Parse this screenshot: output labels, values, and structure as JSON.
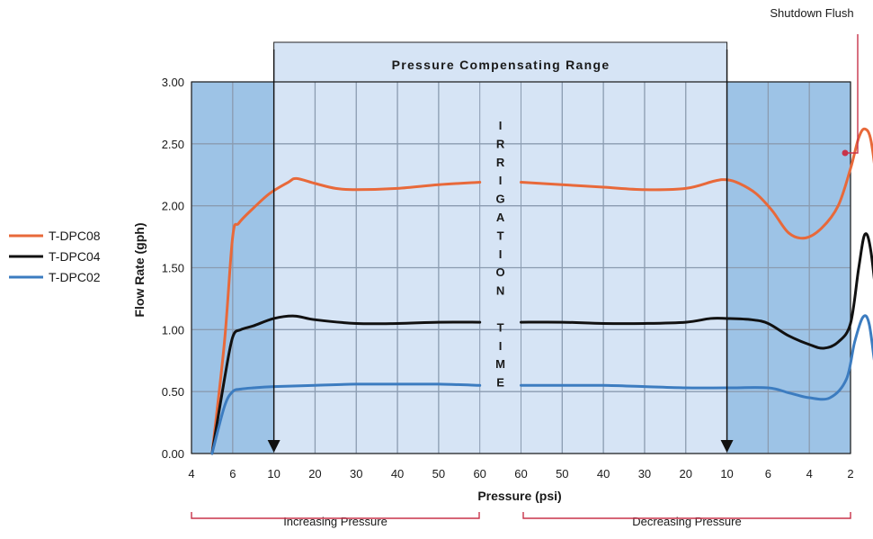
{
  "chart_data": {
    "type": "line",
    "title": "",
    "xlabel": "Pressure (psi)",
    "ylabel": "Flow Rate (gph)",
    "ylim": [
      0,
      3
    ],
    "yticks": [
      "0.00",
      "0.50",
      "1.00",
      "1.50",
      "2.00",
      "2.50",
      "3.00"
    ],
    "x_tick_labels": [
      "4",
      "6",
      "10",
      "20",
      "30",
      "40",
      "50",
      "60",
      "60",
      "50",
      "40",
      "30",
      "20",
      "10",
      "6",
      "4",
      "2"
    ],
    "grid": true,
    "legend_placement": "left",
    "band_label": "Pressure Compensating Range",
    "center_label_letters": [
      "I",
      "R",
      "R",
      "I",
      "G",
      "A",
      "T",
      "I",
      "O",
      "N",
      "",
      "T",
      "I",
      "M",
      "E"
    ],
    "phases": [
      "Increasing Pressure",
      "Decreasing Pressure"
    ],
    "annotation": "Shutdown Flush",
    "series": [
      {
        "name": "T-DPC08",
        "color": "#E8693A",
        "segments": [
          [
            [
              0.5,
              0.0
            ],
            [
              0.8,
              0.9
            ],
            [
              1.0,
              1.75
            ],
            [
              1.15,
              1.86
            ],
            [
              1.5,
              1.98
            ],
            [
              1.9,
              2.1
            ],
            [
              2.35,
              2.19
            ],
            [
              2.55,
              2.22
            ],
            [
              3,
              2.18
            ],
            [
              3.5,
              2.14
            ],
            [
              4,
              2.13
            ],
            [
              5,
              2.14
            ],
            [
              6,
              2.17
            ],
            [
              7,
              2.19
            ]
          ],
          [
            [
              8,
              2.19
            ],
            [
              9,
              2.17
            ],
            [
              10,
              2.15
            ],
            [
              11,
              2.13
            ],
            [
              12,
              2.14
            ],
            [
              12.7,
              2.2
            ],
            [
              13,
              2.21
            ],
            [
              13.3,
              2.18
            ],
            [
              13.7,
              2.1
            ],
            [
              14.1,
              1.96
            ],
            [
              14.5,
              1.78
            ],
            [
              14.9,
              1.74
            ],
            [
              15.3,
              1.82
            ],
            [
              15.7,
              2.0
            ],
            [
              16.0,
              2.3
            ],
            [
              16.2,
              2.55
            ],
            [
              16.35,
              2.62
            ],
            [
              16.5,
              2.52
            ],
            [
              16.65,
              2.1
            ],
            [
              16.85,
              1.2
            ],
            [
              17.0,
              0.0
            ]
          ]
        ]
      },
      {
        "name": "T-DPC04",
        "color": "#111111",
        "segments": [
          [
            [
              0.5,
              0.0
            ],
            [
              0.8,
              0.6
            ],
            [
              1.0,
              0.94
            ],
            [
              1.2,
              1.0
            ],
            [
              1.5,
              1.03
            ],
            [
              2,
              1.09
            ],
            [
              2.5,
              1.11
            ],
            [
              3,
              1.08
            ],
            [
              4,
              1.05
            ],
            [
              5,
              1.05
            ],
            [
              6,
              1.06
            ],
            [
              7,
              1.06
            ]
          ],
          [
            [
              8,
              1.06
            ],
            [
              9,
              1.06
            ],
            [
              10,
              1.05
            ],
            [
              11,
              1.05
            ],
            [
              12,
              1.06
            ],
            [
              12.6,
              1.09
            ],
            [
              13,
              1.09
            ],
            [
              13.6,
              1.08
            ],
            [
              14,
              1.05
            ],
            [
              14.5,
              0.95
            ],
            [
              15,
              0.88
            ],
            [
              15.35,
              0.85
            ],
            [
              15.7,
              0.9
            ],
            [
              16.0,
              1.05
            ],
            [
              16.2,
              1.5
            ],
            [
              16.35,
              1.77
            ],
            [
              16.5,
              1.62
            ],
            [
              16.7,
              1.0
            ],
            [
              16.85,
              0.4
            ],
            [
              17.0,
              0.0
            ]
          ]
        ]
      },
      {
        "name": "T-DPC02",
        "color": "#3C7CC0",
        "segments": [
          [
            [
              0.5,
              0.0
            ],
            [
              0.8,
              0.38
            ],
            [
              1.0,
              0.5
            ],
            [
              1.2,
              0.52
            ],
            [
              1.5,
              0.53
            ],
            [
              2,
              0.54
            ],
            [
              3,
              0.55
            ],
            [
              4,
              0.56
            ],
            [
              5,
              0.56
            ],
            [
              6,
              0.56
            ],
            [
              7,
              0.55
            ]
          ],
          [
            [
              8,
              0.55
            ],
            [
              9,
              0.55
            ],
            [
              10,
              0.55
            ],
            [
              11,
              0.54
            ],
            [
              12,
              0.53
            ],
            [
              13,
              0.53
            ],
            [
              14,
              0.53
            ],
            [
              14.5,
              0.49
            ],
            [
              15,
              0.45
            ],
            [
              15.5,
              0.45
            ],
            [
              15.9,
              0.6
            ],
            [
              16.1,
              0.9
            ],
            [
              16.3,
              1.1
            ],
            [
              16.45,
              1.05
            ],
            [
              16.6,
              0.7
            ],
            [
              16.8,
              0.3
            ],
            [
              17.0,
              0.0
            ]
          ]
        ]
      }
    ]
  },
  "colors": {
    "inner_band": "#D6E4F5",
    "outer_band": "#9DC3E6",
    "grid": "#8A9BB0",
    "bracket": "#C8334A"
  }
}
